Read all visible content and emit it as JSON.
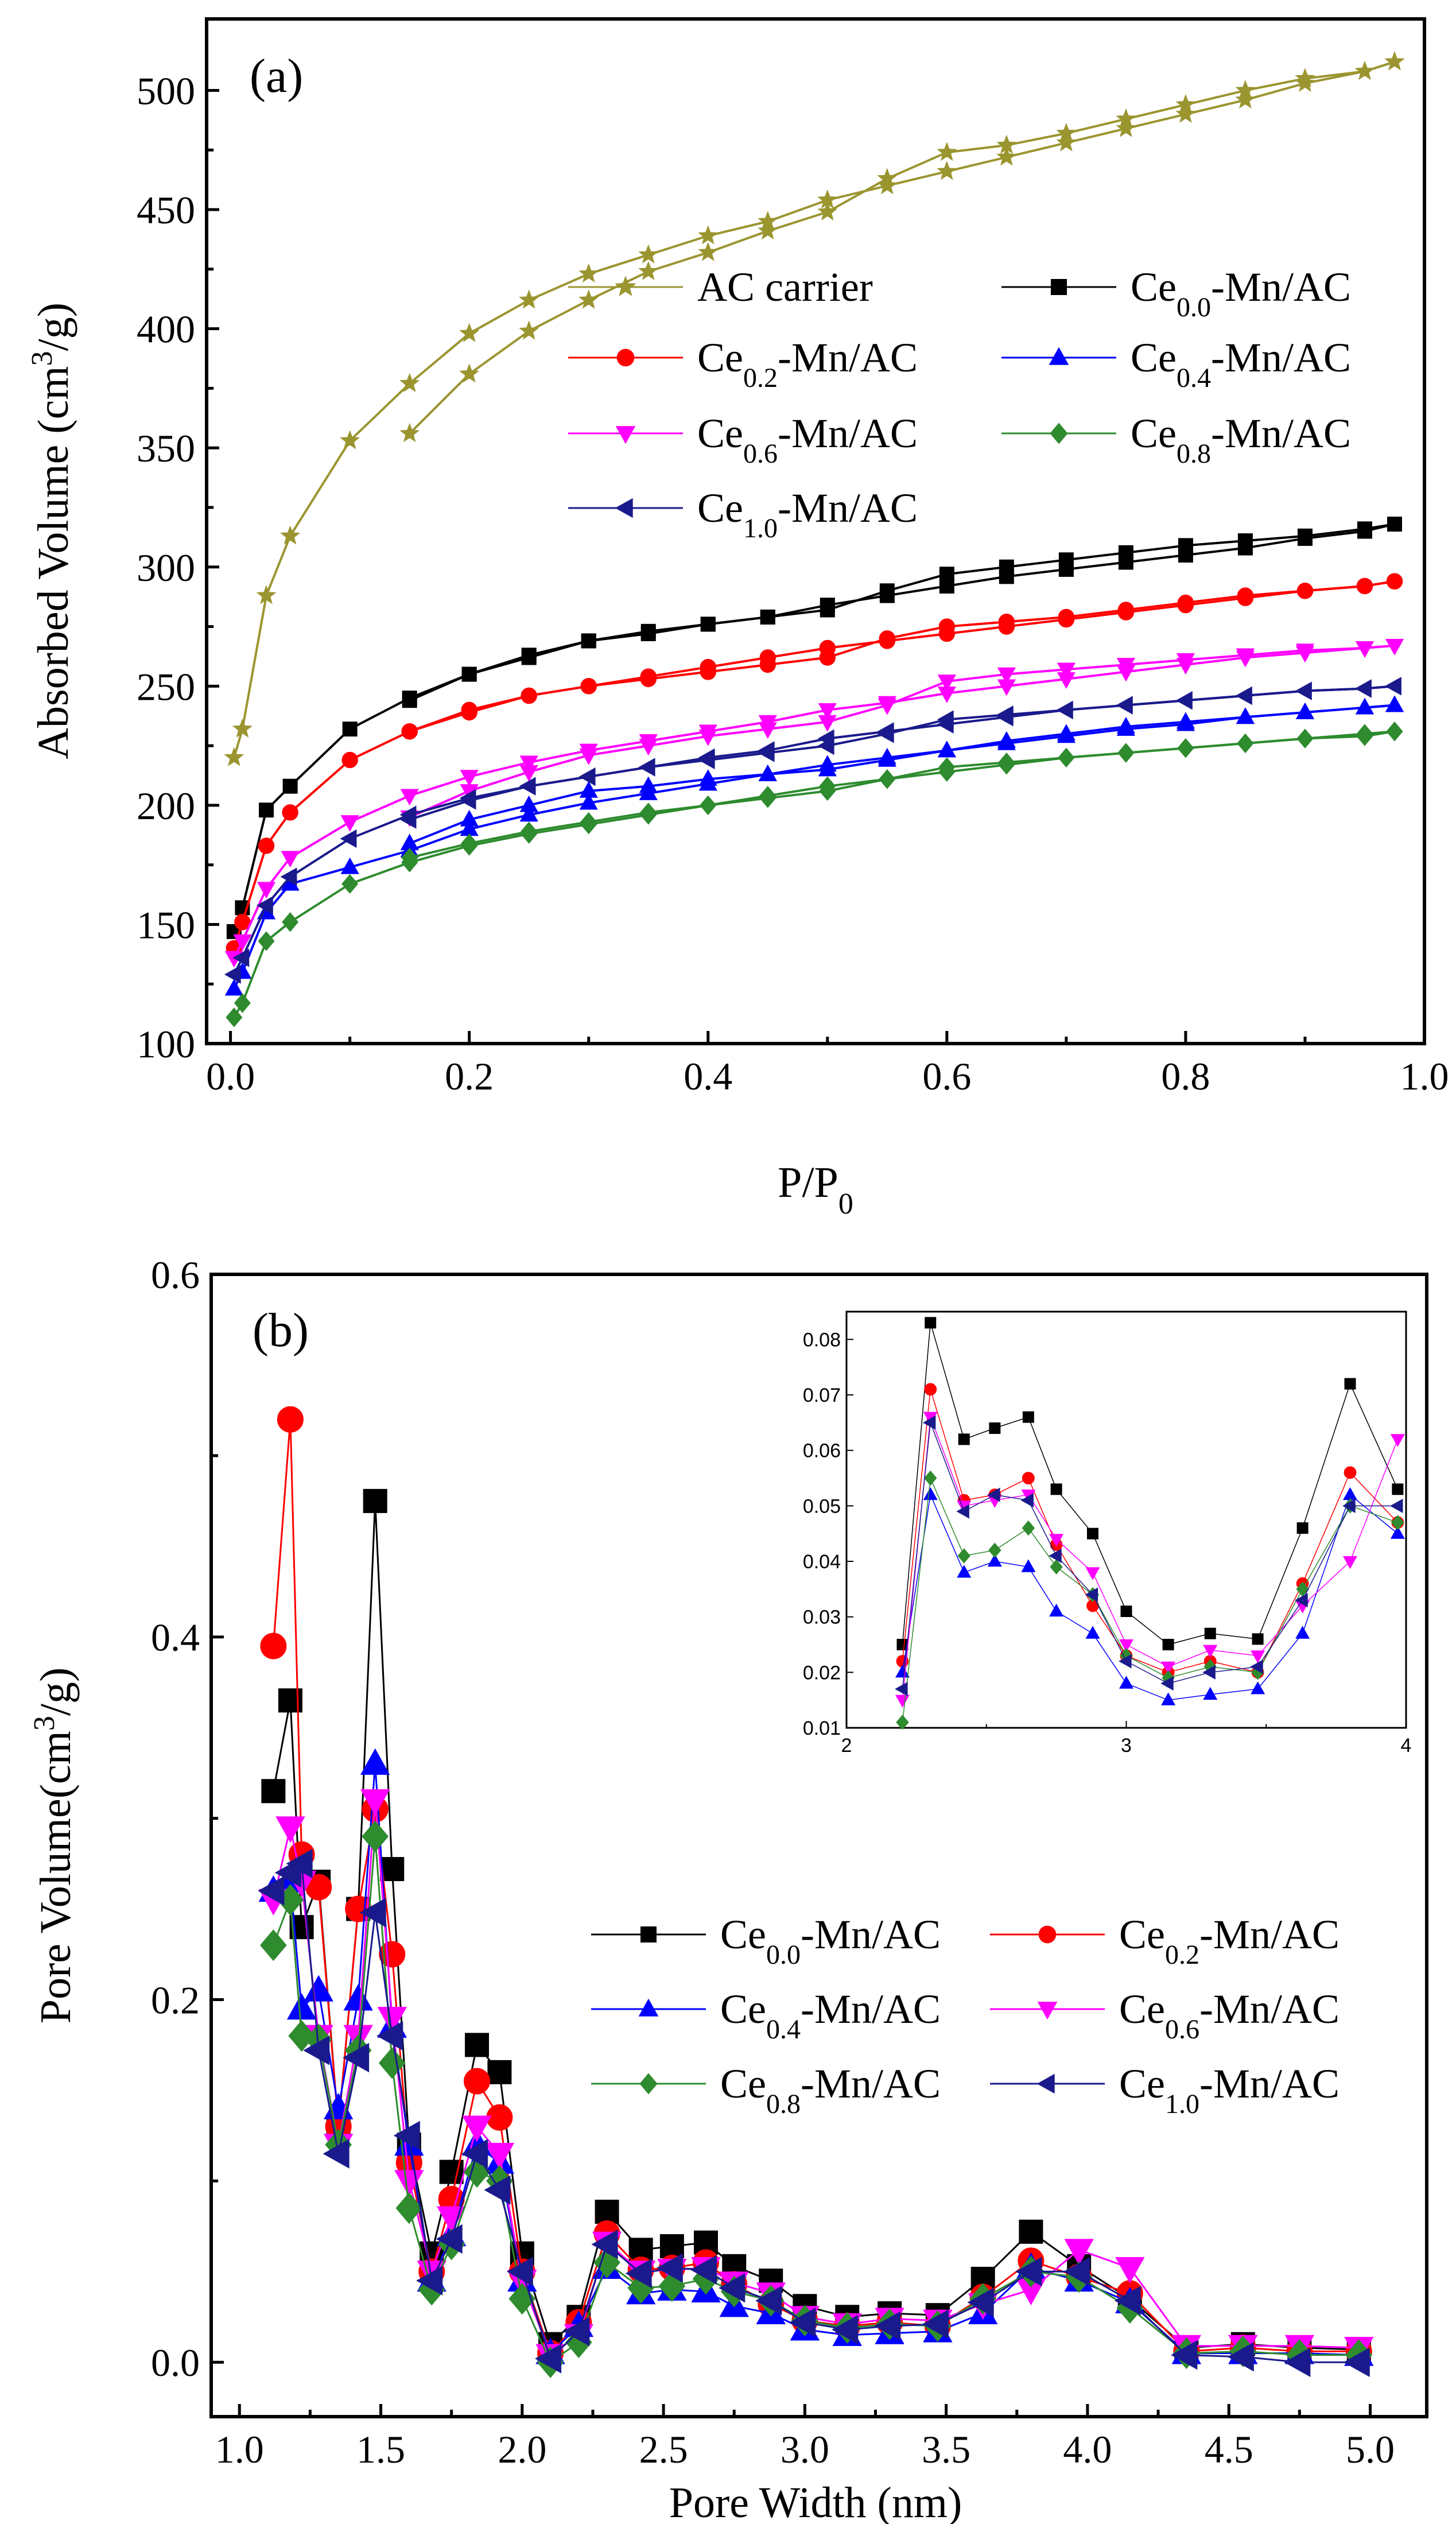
{
  "chart_data": [
    {
      "panel": "(a)",
      "type": "line",
      "xlabel": "P/P",
      "xlabel_sub": "0",
      "ylabel": "Absorbed Volume (cm",
      "ylabel_sup": "3",
      "ylabel_end": "/g)",
      "xlim": [
        -0.02,
        1.0
      ],
      "ylim": [
        100,
        530
      ],
      "xticks": [
        0.0,
        0.2,
        0.4,
        0.6,
        0.8,
        1.0
      ],
      "xtick_labels": [
        "0.0",
        "0.2",
        "0.4",
        "0.6",
        "0.8",
        "1.0"
      ],
      "yticks": [
        100,
        150,
        200,
        250,
        300,
        350,
        400,
        450,
        500
      ],
      "ytick_labels": [
        "100",
        "150",
        "200",
        "250",
        "300",
        "350",
        "400",
        "450",
        "500"
      ],
      "x": [
        0.003,
        0.01,
        0.03,
        0.05,
        0.1,
        0.15,
        0.2,
        0.25,
        0.3,
        0.35,
        0.4,
        0.45,
        0.5,
        0.55,
        0.6,
        0.65,
        0.7,
        0.75,
        0.8,
        0.85,
        0.9,
        0.95,
        0.975
      ],
      "series": [
        {
          "name": "AC carrier",
          "label": "AC   carrier",
          "color": "#9b9530",
          "marker": "star",
          "adsorption": [
            220,
            232,
            288,
            313,
            353,
            377,
            398,
            412,
            423,
            431,
            439,
            445,
            454,
            460,
            466,
            472,
            478,
            484,
            490,
            496,
            503,
            508,
            512
          ],
          "desorption": [
            512,
            508,
            505,
            500,
            494,
            488,
            482,
            477,
            474,
            463,
            449,
            441,
            432,
            424,
            412,
            399,
            381,
            356
          ]
        },
        {
          "name": "Ce0.0-Mn/AC",
          "label_main": "Ce",
          "label_sub": "0.0",
          "label_end": "-Mn/AC",
          "color": "#000000",
          "marker": "square",
          "adsorption": [
            147,
            157,
            198,
            208,
            232,
            245,
            255,
            263,
            269,
            273,
            276,
            279,
            284,
            288,
            292,
            296,
            299,
            302,
            305,
            308,
            312,
            315,
            318
          ],
          "desorption": [
            318,
            316,
            313,
            311,
            309,
            306,
            303,
            300,
            297,
            290,
            282,
            279,
            276,
            272,
            269,
            262,
            255,
            244
          ]
        },
        {
          "name": "Ce0.2-Mn/AC",
          "label_main": "Ce",
          "label_sub": "0.2",
          "label_end": "-Mn/AC",
          "color": "#ff0000",
          "marker": "circle",
          "adsorption": [
            140,
            151,
            183,
            197,
            219,
            231,
            239,
            246,
            250,
            254,
            258,
            262,
            266,
            269,
            272,
            275,
            278,
            281,
            284,
            287,
            290,
            292,
            294
          ],
          "desorption": [
            294,
            292,
            290,
            288,
            285,
            282,
            279,
            277,
            275,
            270,
            262,
            259,
            256,
            253,
            250,
            246,
            240,
            231
          ]
        },
        {
          "name": "Ce0.4-Mn/AC",
          "label_main": "Ce",
          "label_sub": "0.4",
          "label_end": "-Mn/AC",
          "color": "#0000ff",
          "marker": "triangle-up",
          "adsorption": [
            123,
            130,
            155,
            167,
            174,
            181,
            190,
            196,
            201,
            205,
            209,
            213,
            217,
            220,
            223,
            226,
            229,
            232,
            234,
            237,
            239,
            241,
            242
          ],
          "desorption": [
            242,
            241,
            239,
            237,
            235,
            233,
            230,
            227,
            223,
            219,
            215,
            213,
            211,
            208,
            206,
            200,
            194,
            184
          ]
        },
        {
          "name": "Ce0.6-Mn/AC",
          "label_main": "Ce",
          "label_sub": "0.6",
          "label_end": "-Mn/AC",
          "color": "#ff00ff",
          "marker": "triangle-down",
          "adsorption": [
            136,
            143,
            165,
            178,
            193,
            204,
            212,
            218,
            223,
            227,
            231,
            235,
            240,
            243,
            247,
            250,
            253,
            256,
            259,
            262,
            264,
            266,
            267
          ],
          "desorption": [
            267,
            266,
            265,
            263,
            261,
            259,
            257,
            255,
            252,
            242,
            235,
            232,
            229,
            225,
            221,
            214,
            206,
            195
          ]
        },
        {
          "name": "Ce0.8-Mn/AC",
          "label_main": "Ce",
          "label_sub": "0.8",
          "label_end": "-Mn/AC",
          "color": "#2e8b2e",
          "marker": "diamond",
          "adsorption": [
            111,
            117,
            143,
            151,
            167,
            176,
            183,
            188,
            192,
            196,
            200,
            204,
            208,
            211,
            214,
            217,
            220,
            222,
            224,
            226,
            228,
            230,
            231
          ],
          "desorption": [
            231,
            229,
            228,
            226,
            224,
            222,
            220,
            218,
            216,
            211,
            206,
            203,
            200,
            197,
            193,
            189,
            184,
            178
          ]
        },
        {
          "name": "Ce1.0-Mn/AC",
          "label_main": "Ce",
          "label_sub": "1.0",
          "label_end": "-Mn/AC",
          "color": "#1a1a8c",
          "marker": "triangle-left",
          "adsorption": [
            129,
            136,
            158,
            170,
            186,
            196,
            203,
            208,
            212,
            216,
            220,
            223,
            228,
            231,
            234,
            237,
            240,
            242,
            244,
            246,
            248,
            249,
            250
          ],
          "desorption": [
            250,
            249,
            248,
            246,
            244,
            242,
            240,
            238,
            236,
            230,
            225,
            222,
            219,
            216,
            212,
            208,
            202,
            194
          ]
        }
      ],
      "legend_position": "upper-right, two columns"
    },
    {
      "panel": "(b)",
      "type": "line",
      "xlabel": "Pore Width (nm)",
      "ylabel": "Pore Volume(cm",
      "ylabel_sup": "3",
      "ylabel_end": "/g)",
      "xlim": [
        0.9,
        5.2
      ],
      "ylim": [
        -0.03,
        0.6
      ],
      "xticks": [
        1.0,
        1.5,
        2.0,
        2.5,
        3.0,
        3.5,
        4.0,
        4.5,
        5.0
      ],
      "xtick_labels": [
        "1.0",
        "1.5",
        "2.0",
        "2.5",
        "3.0",
        "3.5",
        "4.0",
        "4.5",
        "5.0"
      ],
      "yticks": [
        0.0,
        0.2,
        0.4,
        0.6
      ],
      "ytick_labels": [
        "0.0",
        "0.2",
        "0.4",
        "0.6"
      ],
      "x": [
        1.12,
        1.18,
        1.22,
        1.28,
        1.35,
        1.42,
        1.48,
        1.54,
        1.6,
        1.68,
        1.75,
        1.84,
        1.92,
        2.0,
        2.1,
        2.2,
        2.3,
        2.42,
        2.53,
        2.65,
        2.75,
        2.88,
        3.0,
        3.15,
        3.3,
        3.47,
        3.63,
        3.8,
        3.97,
        4.15,
        4.35,
        4.55,
        4.75,
        4.96
      ],
      "series": [
        {
          "name": "Ce0.0-Mn/AC",
          "label_main": "Ce",
          "label_sub": "0.0",
          "label_end": "-Mn/AC",
          "color": "#000000",
          "marker": "square",
          "values": [
            0.315,
            0.365,
            0.24,
            0.265,
            0.13,
            0.25,
            0.475,
            0.272,
            0.12,
            0.06,
            0.105,
            0.175,
            0.16,
            0.06,
            0.01,
            0.025,
            0.083,
            0.062,
            0.064,
            0.066,
            0.053,
            0.045,
            0.031,
            0.025,
            0.027,
            0.026,
            0.046,
            0.072,
            0.053,
            0.035,
            0.008,
            0.01,
            0.008,
            0.007
          ]
        },
        {
          "name": "Ce0.2-Mn/AC",
          "label_main": "Ce",
          "label_sub": "0.2",
          "label_end": "-Mn/AC",
          "color": "#ff0000",
          "marker": "circle",
          "values": [
            0.395,
            0.52,
            0.28,
            0.262,
            0.13,
            0.25,
            0.305,
            0.225,
            0.11,
            0.05,
            0.09,
            0.155,
            0.135,
            0.05,
            0.005,
            0.022,
            0.071,
            0.051,
            0.052,
            0.055,
            0.043,
            0.032,
            0.023,
            0.02,
            0.022,
            0.02,
            0.036,
            0.056,
            0.047,
            0.038,
            0.006,
            0.008,
            0.006,
            0.006
          ]
        },
        {
          "name": "Ce0.4-Mn/AC",
          "label_main": "Ce",
          "label_sub": "0.4",
          "label_end": "-Mn/AC",
          "color": "#0000ff",
          "marker": "triangle-up",
          "values": [
            0.26,
            0.265,
            0.195,
            0.205,
            0.14,
            0.2,
            0.33,
            0.185,
            0.12,
            0.045,
            0.07,
            0.12,
            0.11,
            0.045,
            0.005,
            0.02,
            0.052,
            0.038,
            0.04,
            0.039,
            0.031,
            0.027,
            0.018,
            0.015,
            0.016,
            0.017,
            0.027,
            0.052,
            0.045,
            0.033,
            0.005,
            0.005,
            0.005,
            0.004
          ]
        },
        {
          "name": "Ce0.6-Mn/AC",
          "label_main": "Ce",
          "label_sub": "0.6",
          "label_end": "-Mn/AC",
          "color": "#ff00ff",
          "marker": "triangle-down",
          "values": [
            0.255,
            0.295,
            0.265,
            0.18,
            0.12,
            0.18,
            0.31,
            0.19,
            0.1,
            0.05,
            0.08,
            0.13,
            0.115,
            0.045,
            0.004,
            0.015,
            0.066,
            0.05,
            0.051,
            0.052,
            0.044,
            0.038,
            0.025,
            0.021,
            0.024,
            0.023,
            0.032,
            0.04,
            0.062,
            0.052,
            0.009,
            0.009,
            0.009,
            0.008
          ]
        },
        {
          "name": "Ce0.8-Mn/AC",
          "label_main": "Ce",
          "label_sub": "0.8",
          "label_end": "-Mn/AC",
          "color": "#2e8b2e",
          "marker": "diamond",
          "values": [
            0.23,
            0.255,
            0.18,
            0.178,
            0.12,
            0.172,
            0.29,
            0.165,
            0.085,
            0.04,
            0.065,
            0.105,
            0.1,
            0.035,
            0.0,
            0.011,
            0.055,
            0.041,
            0.042,
            0.046,
            0.039,
            0.034,
            0.023,
            0.019,
            0.021,
            0.02,
            0.035,
            0.05,
            0.047,
            0.03,
            0.005,
            0.006,
            0.004,
            0.004
          ]
        },
        {
          "name": "Ce1.0-Mn/AC",
          "label_main": "Ce",
          "label_sub": "1.0",
          "label_end": "-Mn/AC",
          "color": "#1a1a8c",
          "marker": "triangle-left",
          "values": [
            0.26,
            0.27,
            0.275,
            0.172,
            0.115,
            0.168,
            0.248,
            0.18,
            0.125,
            0.045,
            0.068,
            0.115,
            0.095,
            0.05,
            0.002,
            0.017,
            0.065,
            0.049,
            0.052,
            0.051,
            0.041,
            0.034,
            0.022,
            0.018,
            0.02,
            0.021,
            0.033,
            0.05,
            0.05,
            0.034,
            0.004,
            0.003,
            0.0,
            0.0
          ]
        }
      ],
      "legend_position": "middle-right, two columns",
      "inset": {
        "xlim": [
          2.0,
          4.0
        ],
        "ylim": [
          0.01,
          0.085
        ],
        "xticks": [
          2,
          3,
          4
        ],
        "xtick_labels": [
          "2",
          "3",
          "4"
        ],
        "yticks": [
          0.01,
          0.02,
          0.03,
          0.04,
          0.05,
          0.06,
          0.07,
          0.08
        ],
        "ytick_labels": [
          "0.01",
          "0.02",
          "0.03",
          "0.04",
          "0.05",
          "0.06",
          "0.07",
          "0.08"
        ],
        "x": [
          2.2,
          2.3,
          2.42,
          2.53,
          2.65,
          2.75,
          2.88,
          3.0,
          3.15,
          3.3,
          3.47,
          3.63,
          3.8,
          3.97
        ]
      }
    }
  ]
}
